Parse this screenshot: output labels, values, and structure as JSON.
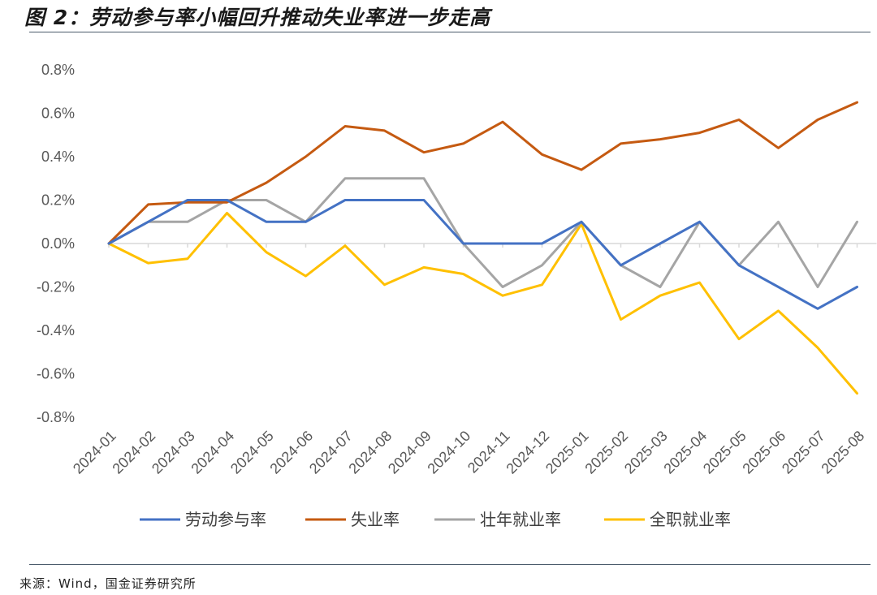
{
  "figure": {
    "title": "图 2：劳动参与率小幅回升推动失业率进一步走高",
    "source": "来源：Wind，国金证券研究所"
  },
  "chart_data": {
    "type": "line",
    "title": "",
    "xlabel": "",
    "ylabel": "",
    "x": [
      "2024-01",
      "2024-02",
      "2024-03",
      "2024-04",
      "2024-05",
      "2024-06",
      "2024-07",
      "2024-08",
      "2024-09",
      "2024-10",
      "2024-11",
      "2024-12",
      "2025-01",
      "2025-02",
      "2025-03",
      "2025-04",
      "2025-05",
      "2025-06",
      "2025-07",
      "2025-08"
    ],
    "ylim": [
      -0.8,
      0.8
    ],
    "yticks": [
      -0.8,
      -0.6,
      -0.4,
      -0.2,
      0.0,
      0.2,
      0.4,
      0.6,
      0.8
    ],
    "ytick_labels": [
      "-0.8%",
      "-0.6%",
      "-0.4%",
      "-0.2%",
      "0.0%",
      "0.2%",
      "0.4%",
      "0.6%",
      "0.8%"
    ],
    "grid": false,
    "legend_position": "bottom",
    "series": [
      {
        "name": "劳动参与率",
        "color": "#4472C4",
        "values": [
          0.0,
          0.1,
          0.2,
          0.2,
          0.1,
          0.1,
          0.2,
          0.2,
          0.2,
          0.0,
          0.0,
          0.0,
          0.1,
          -0.1,
          0.0,
          0.1,
          -0.1,
          -0.2,
          -0.3,
          -0.2
        ]
      },
      {
        "name": "失业率",
        "color": "#C55A11",
        "values": [
          0.0,
          0.18,
          0.19,
          0.19,
          0.28,
          0.4,
          0.54,
          0.52,
          0.42,
          0.46,
          0.56,
          0.41,
          0.34,
          0.46,
          0.48,
          0.51,
          0.57,
          0.44,
          0.57,
          0.65
        ]
      },
      {
        "name": "壮年就业率",
        "color": "#A5A5A5",
        "values": [
          0.0,
          0.1,
          0.1,
          0.2,
          0.2,
          0.1,
          0.3,
          0.3,
          0.3,
          0.0,
          -0.2,
          -0.1,
          0.1,
          -0.1,
          -0.2,
          0.1,
          -0.1,
          0.1,
          -0.2,
          0.1
        ]
      },
      {
        "name": "全职就业率",
        "color": "#FFC000",
        "values": [
          0.0,
          -0.09,
          -0.07,
          0.14,
          -0.04,
          -0.15,
          -0.01,
          -0.19,
          -0.11,
          -0.14,
          -0.24,
          -0.19,
          0.09,
          -0.35,
          -0.24,
          -0.18,
          -0.44,
          -0.31,
          -0.48,
          -0.69
        ]
      }
    ]
  }
}
